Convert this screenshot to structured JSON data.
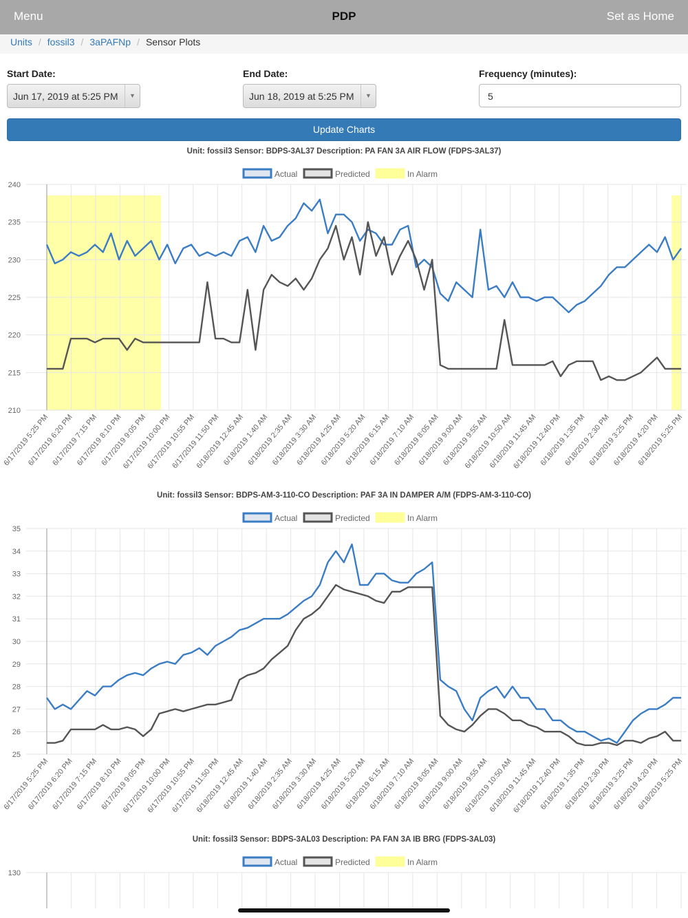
{
  "nav": {
    "menu": "Menu",
    "title": "PDP",
    "set_home": "Set as Home"
  },
  "breadcrumb": [
    "Units",
    "fossil3",
    "3aPAFNp",
    "Sensor Plots"
  ],
  "form": {
    "start_label": "Start Date:",
    "start_value": "Jun 17, 2019 at 5:25 PM",
    "end_label": "End Date:",
    "end_value": "Jun 18, 2019 at 5:25 PM",
    "freq_label": "Frequency (minutes):",
    "freq_value": "5",
    "update_button": "Update Charts"
  },
  "legend": {
    "actual": "Actual",
    "predicted": "Predicted",
    "alarm": "In Alarm"
  },
  "colors": {
    "actual": "#3b7dc4",
    "predicted": "#555555",
    "alarm": "#ffff99",
    "grid": "#e6e6e6"
  },
  "x_labels": [
    "6/17/2019 5:25 PM",
    "6/17/2019 6:20 PM",
    "6/17/2019 7:15 PM",
    "6/17/2019 8:10 PM",
    "6/17/2019 9:05 PM",
    "6/17/2019 10:00 PM",
    "6/17/2019 10:55 PM",
    "6/17/2019 11:50 PM",
    "6/18/2019 12:45 AM",
    "6/18/2019 1:40 AM",
    "6/18/2019 2:35 AM",
    "6/18/2019 3:30 AM",
    "6/18/2019 4:25 AM",
    "6/18/2019 5:20 AM",
    "6/18/2019 6:15 AM",
    "6/18/2019 7:10 AM",
    "6/18/2019 8:05 AM",
    "6/18/2019 9:00 AM",
    "6/18/2019 9:55 AM",
    "6/18/2019 10:50 AM",
    "6/18/2019 11:45 AM",
    "6/18/2019 12:40 PM",
    "6/18/2019 1:35 PM",
    "6/18/2019 2:30 PM",
    "6/18/2019 3:25 PM",
    "6/18/2019 4:20 PM",
    "6/18/2019 5:25 PM"
  ],
  "chart_data": [
    {
      "type": "line",
      "title": "Unit: fossil3 Sensor: BDPS-3AL37 Description: PA FAN 3A AIR FLOW (FDPS-3AL37)",
      "ylim": [
        210,
        240
      ],
      "yticks": [
        210,
        215,
        220,
        225,
        230,
        235,
        240
      ],
      "legend_position": "top",
      "series": [
        {
          "name": "Actual",
          "values": [
            232,
            229.5,
            230,
            231,
            230.5,
            231,
            232,
            231,
            233.5,
            230,
            232.5,
            230.5,
            231.5,
            232.5,
            230,
            232,
            229.5,
            231.5,
            232,
            230.5,
            231,
            230.5,
            231,
            230.5,
            232.5,
            233,
            231,
            234.5,
            232.5,
            233,
            234.5,
            235.5,
            237.5,
            236.5,
            238,
            233.5,
            236,
            236,
            235,
            232.5,
            234,
            233.5,
            232,
            232,
            234,
            234.5,
            229,
            230,
            229,
            225.5,
            224.5,
            227,
            226,
            225,
            234,
            226,
            226.5,
            225,
            227,
            225,
            225,
            224.5,
            225,
            225,
            224,
            223,
            224,
            224.5,
            225.5,
            226.5,
            228,
            229,
            229,
            230,
            231,
            232,
            231,
            233,
            230,
            231.5
          ]
        },
        {
          "name": "Predicted",
          "values": [
            215.5,
            215.5,
            215.5,
            219.5,
            219.5,
            219.5,
            219,
            219.5,
            219.5,
            219.5,
            218,
            219.5,
            219,
            219,
            219,
            219,
            219,
            219,
            219,
            219,
            227,
            219.5,
            219.5,
            219,
            219,
            226,
            218,
            226,
            228,
            227,
            226.5,
            227.5,
            226,
            227.5,
            230,
            231.5,
            234.5,
            230,
            233,
            228,
            235,
            230.5,
            233,
            228,
            230.5,
            232.5,
            230,
            226,
            230,
            216,
            215.5,
            215.5,
            215.5,
            215.5,
            215.5,
            215.5,
            215.5,
            222,
            216,
            216,
            216,
            216,
            216,
            216.5,
            214.5,
            216,
            216.5,
            216.5,
            216.5,
            214,
            214.5,
            214,
            214,
            214.5,
            215,
            216,
            217,
            215.5,
            215.5,
            215.5
          ]
        }
      ],
      "alarm_ranges": [
        [
          0,
          0.18
        ],
        [
          0.985,
          1.0
        ]
      ]
    },
    {
      "type": "line",
      "title": "Unit: fossil3 Sensor: BDPS-AM-3-110-CO Description: PAF 3A IN DAMPER A/M (FDPS-AM-3-110-CO)",
      "ylim": [
        25,
        35
      ],
      "yticks": [
        25,
        26,
        27,
        28,
        29,
        30,
        31,
        32,
        33,
        34,
        35
      ],
      "legend_position": "top",
      "series": [
        {
          "name": "Actual",
          "values": [
            27.5,
            27,
            27.2,
            27,
            27.4,
            27.8,
            27.6,
            28,
            28,
            28.3,
            28.5,
            28.6,
            28.5,
            28.8,
            29,
            29.1,
            29,
            29.4,
            29.5,
            29.7,
            29.4,
            29.8,
            30,
            30.2,
            30.5,
            30.6,
            30.8,
            31,
            31,
            31,
            31.2,
            31.5,
            31.8,
            32,
            32.5,
            33.5,
            34,
            33.5,
            34.3,
            32.5,
            32.5,
            33,
            33,
            32.7,
            32.6,
            32.6,
            33,
            33.2,
            33.5,
            28.3,
            28,
            27.8,
            27,
            26.5,
            27.5,
            27.8,
            28,
            27.5,
            28,
            27.5,
            27.5,
            27,
            27,
            26.5,
            26.5,
            26.2,
            26,
            26,
            25.8,
            25.6,
            25.7,
            25.5,
            26,
            26.5,
            26.8,
            27,
            27,
            27.2,
            27.5,
            27.5
          ]
        },
        {
          "name": "Predicted",
          "values": [
            25.5,
            25.5,
            25.6,
            26.1,
            26.1,
            26.1,
            26.1,
            26.3,
            26.1,
            26.1,
            26.2,
            26.1,
            25.8,
            26.1,
            26.8,
            26.9,
            27,
            26.9,
            27,
            27.1,
            27.2,
            27.2,
            27.3,
            27.4,
            28.3,
            28.5,
            28.6,
            28.8,
            29.2,
            29.5,
            29.8,
            30.5,
            31,
            31.2,
            31.5,
            32,
            32.5,
            32.3,
            32.2,
            32.1,
            32,
            31.8,
            31.7,
            32.2,
            32.2,
            32.4,
            32.4,
            32.4,
            32.4,
            26.7,
            26.3,
            26.1,
            26,
            26.3,
            26.7,
            27,
            27,
            26.8,
            26.5,
            26.5,
            26.3,
            26.2,
            26,
            26,
            26,
            25.8,
            25.5,
            25.4,
            25.4,
            25.5,
            25.5,
            25.4,
            25.6,
            25.6,
            25.5,
            25.7,
            25.8,
            26,
            25.6,
            25.6
          ]
        }
      ],
      "alarm_ranges": []
    },
    {
      "type": "line",
      "title": "Unit: fossil3 Sensor: BDPS-3AL03 Description: PA FAN 3A IB BRG (FDPS-3AL03)",
      "ylim": [
        null,
        130
      ],
      "yticks": [
        130
      ],
      "legend_position": "top",
      "series": [
        {
          "name": "Actual",
          "values": []
        },
        {
          "name": "Predicted",
          "values": []
        }
      ],
      "alarm_ranges": []
    }
  ]
}
